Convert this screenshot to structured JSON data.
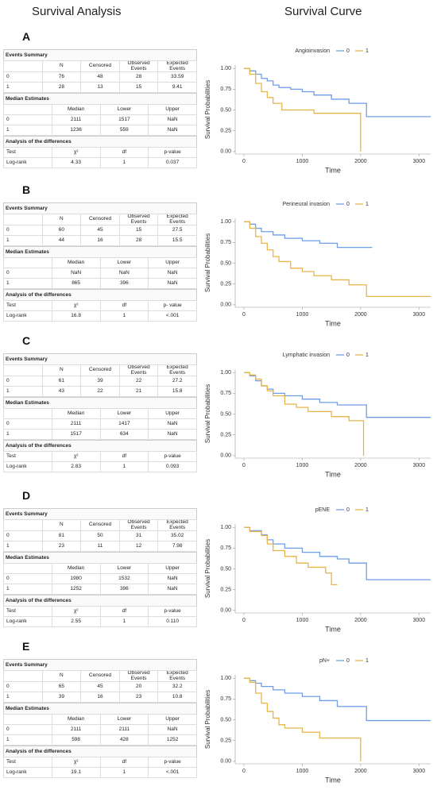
{
  "headers": {
    "left": "Survival Analysis",
    "right": "Survival Curve"
  },
  "panels": [
    {
      "label": "A",
      "tables": {
        "events": {
          "title": "Events Summary",
          "columns": [
            "N",
            "Censored",
            "Observed Events",
            "Expected Events"
          ],
          "rows": [
            [
              "0",
              "76",
              "48",
              "28",
              "33.59"
            ],
            [
              "1",
              "28",
              "13",
              "15",
              "9.41"
            ]
          ]
        },
        "medians": {
          "title": "Median Estimates",
          "columns": [
            "Median",
            "Lower",
            "Upper"
          ],
          "rows": [
            [
              "0",
              "2111",
              "1517",
              "NaN"
            ],
            [
              "1",
              "1236",
              "559",
              "NaN"
            ]
          ]
        },
        "tests": {
          "title": "Analysis of the differences",
          "columns": [
            "Test",
            "χ²",
            "df",
            "p-value"
          ],
          "rows": [
            [
              "Log-rank",
              "4.33",
              "1",
              "0.037"
            ]
          ]
        }
      }
    },
    {
      "label": "B",
      "tables": {
        "events": {
          "title": "Events Summary",
          "columns": [
            "N",
            "Censored",
            "Observed Events",
            "Expected Events"
          ],
          "rows": [
            [
              "0",
              "60",
              "45",
              "15",
              "27.5"
            ],
            [
              "1",
              "44",
              "16",
              "28",
              "15.5"
            ]
          ]
        },
        "medians": {
          "title": "Median Estimates",
          "columns": [
            "Median",
            "Lower",
            "Upper"
          ],
          "rows": [
            [
              "0",
              "NaN",
              "NaN",
              "NaN"
            ],
            [
              "1",
              "865",
              "396",
              "NaN"
            ]
          ]
        },
        "tests": {
          "title": "Analysis of the differences",
          "columns": [
            "Test",
            "χ²",
            "df",
            "p- value"
          ],
          "rows": [
            [
              "Log-rank",
              "16.8",
              "1",
              "<.001"
            ]
          ]
        }
      }
    },
    {
      "label": "C",
      "tables": {
        "events": {
          "title": "Events Summary",
          "columns": [
            "N",
            "Censored",
            "Observed Events",
            "Expected Events"
          ],
          "rows": [
            [
              "0",
              "61",
              "39",
              "22",
              "27.2"
            ],
            [
              "1",
              "43",
              "22",
              "21",
              "15.8"
            ]
          ]
        },
        "medians": {
          "title": "Median Estimates",
          "columns": [
            "Median",
            "Lower",
            "Upper"
          ],
          "rows": [
            [
              "0",
              "2111",
              "1417",
              "NaN"
            ],
            [
              "1",
              "1517",
              "634",
              "NaN"
            ]
          ]
        },
        "tests": {
          "title": "Analysis of the differences",
          "columns": [
            "Test",
            "χ²",
            "df",
            "p-value"
          ],
          "rows": [
            [
              "Log-rank",
              "2.83",
              "1",
              "0.093"
            ]
          ]
        }
      }
    },
    {
      "label": "D",
      "tables": {
        "events": {
          "title": "Events Summary",
          "columns": [
            "N",
            "Censored",
            "Observed Events",
            "Expected Events"
          ],
          "rows": [
            [
              "0",
              "81",
              "50",
              "31",
              "35.02"
            ],
            [
              "1",
              "23",
              "11",
              "12",
              "7.98"
            ]
          ]
        },
        "medians": {
          "title": "Median Estimates",
          "columns": [
            "Median",
            "Lower",
            "Upper"
          ],
          "rows": [
            [
              "0",
              "1980",
              "1532",
              "NaN"
            ],
            [
              "1",
              "1252",
              "396",
              "NaN"
            ]
          ]
        },
        "tests": {
          "title": "Analysis of the differences",
          "columns": [
            "Test",
            "χ²",
            "df",
            "p-value"
          ],
          "rows": [
            [
              "Log-rank",
              "2.55",
              "1",
              "0.110"
            ]
          ]
        }
      }
    },
    {
      "label": "E",
      "tables": {
        "events": {
          "title": "Events Summary",
          "columns": [
            "N",
            "Censored",
            "Observed Events",
            "Expected Events"
          ],
          "rows": [
            [
              "0",
              "65",
              "45",
              "20",
              "32.2"
            ],
            [
              "1",
              "39",
              "16",
              "23",
              "10.8"
            ]
          ]
        },
        "medians": {
          "title": "Median Estimates",
          "columns": [
            "Median",
            "Lower",
            "Upper"
          ],
          "rows": [
            [
              "0",
              "2111",
              "2111",
              "NaN"
            ],
            [
              "1",
              "598",
              "428",
              "1252"
            ]
          ]
        },
        "tests": {
          "title": "Analysis of the differences",
          "columns": [
            "Test",
            "χ²",
            "df",
            "p-value"
          ],
          "rows": [
            [
              "Log-rank",
              "19.1",
              "1",
              "<.001"
            ]
          ]
        }
      }
    }
  ],
  "chart_data": [
    {
      "type": "step",
      "title": "Angioinvasion",
      "xlabel": "Time",
      "ylabel": "Survival Probabilities",
      "xlim": [
        -150,
        3200
      ],
      "xticks": [
        0,
        1000,
        2000,
        3000
      ],
      "ylim": [
        -0.03,
        1.04
      ],
      "yticks": [
        {
          "value": 0,
          "label": "0.00"
        },
        {
          "value": 0.25,
          "label": "0.25"
        },
        {
          "value": 0.5,
          "label": "0.50"
        },
        {
          "value": 0.75,
          "label": "0.75"
        },
        {
          "value": 1,
          "label": "1.00"
        }
      ],
      "series": [
        {
          "name": "0",
          "color": "#6f9ee8",
          "x": [
            0,
            100,
            200,
            300,
            400,
            500,
            600,
            800,
            1000,
            1200,
            1500,
            1800,
            2100,
            3200
          ],
          "values": [
            1,
            0.97,
            0.93,
            0.88,
            0.85,
            0.8,
            0.77,
            0.75,
            0.72,
            0.68,
            0.63,
            0.58,
            0.42,
            0.42
          ]
        },
        {
          "name": "1",
          "color": "#e8b54a",
          "x": [
            0,
            100,
            200,
            300,
            400,
            500,
            650,
            1200,
            2000
          ],
          "values": [
            1,
            0.93,
            0.82,
            0.72,
            0.65,
            0.58,
            0.5,
            0.46,
            0
          ]
        }
      ]
    },
    {
      "type": "step",
      "title": "Perineural invasion",
      "xlabel": "Time",
      "ylabel": "Survival Probabilities",
      "xlim": [
        -150,
        3200
      ],
      "xticks": [
        0,
        1000,
        2000,
        3000
      ],
      "ylim": [
        -0.03,
        1.04
      ],
      "yticks": [
        {
          "value": 0,
          "label": "0.00"
        },
        {
          "value": 0.25,
          "label": "0.25"
        },
        {
          "value": 0.5,
          "label": "0.50"
        },
        {
          "value": 0.75,
          "label": "0.75"
        },
        {
          "value": 1,
          "label": "1.00"
        }
      ],
      "series": [
        {
          "name": "0",
          "color": "#6f9ee8",
          "x": [
            0,
            100,
            200,
            300,
            500,
            700,
            1000,
            1300,
            1600,
            2200
          ],
          "values": [
            1,
            0.97,
            0.92,
            0.88,
            0.84,
            0.8,
            0.77,
            0.74,
            0.69,
            0.69
          ]
        },
        {
          "name": "1",
          "color": "#e8b54a",
          "x": [
            0,
            100,
            200,
            300,
            400,
            500,
            600,
            800,
            1000,
            1200,
            1500,
            1800,
            2100,
            3200
          ],
          "values": [
            1,
            0.92,
            0.82,
            0.74,
            0.66,
            0.58,
            0.52,
            0.44,
            0.4,
            0.35,
            0.3,
            0.24,
            0.1,
            0.1
          ]
        }
      ]
    },
    {
      "type": "step",
      "title": "Lymphatic invasion",
      "xlabel": "Time",
      "ylabel": "Survival Probabilities",
      "xlim": [
        -150,
        3200
      ],
      "xticks": [
        0,
        1000,
        2000,
        3000
      ],
      "ylim": [
        -0.03,
        1.04
      ],
      "yticks": [
        {
          "value": 0,
          "label": "0.00"
        },
        {
          "value": 0.25,
          "label": "0.25"
        },
        {
          "value": 0.5,
          "label": "0.50"
        },
        {
          "value": 0.75,
          "label": "0.75"
        },
        {
          "value": 1,
          "label": "1.00"
        }
      ],
      "series": [
        {
          "name": "0",
          "color": "#6f9ee8",
          "x": [
            0,
            100,
            200,
            300,
            400,
            500,
            700,
            1000,
            1300,
            1600,
            2100,
            3200
          ],
          "values": [
            1,
            0.96,
            0.9,
            0.84,
            0.8,
            0.75,
            0.72,
            0.68,
            0.64,
            0.61,
            0.46,
            0.46
          ]
        },
        {
          "name": "1",
          "color": "#e8b54a",
          "x": [
            0,
            100,
            200,
            300,
            400,
            500,
            700,
            900,
            1100,
            1500,
            1800,
            2050
          ],
          "values": [
            1,
            0.97,
            0.92,
            0.84,
            0.78,
            0.72,
            0.62,
            0.58,
            0.53,
            0.47,
            0.42,
            0
          ]
        }
      ]
    },
    {
      "type": "step",
      "title": "pENE",
      "xlabel": "Time",
      "ylabel": "Survival Probabilities",
      "xlim": [
        -150,
        3200
      ],
      "xticks": [
        0,
        1000,
        2000,
        3000
      ],
      "ylim": [
        -0.03,
        1.04
      ],
      "yticks": [
        {
          "value": 0,
          "label": "0.00"
        },
        {
          "value": 0.25,
          "label": "0.25"
        },
        {
          "value": 0.5,
          "label": "0.50"
        },
        {
          "value": 0.75,
          "label": "0.75"
        },
        {
          "value": 1,
          "label": "1.00"
        }
      ],
      "series": [
        {
          "name": "0",
          "color": "#6f9ee8",
          "x": [
            0,
            100,
            300,
            400,
            500,
            700,
            1000,
            1300,
            1600,
            1800,
            2100,
            3200
          ],
          "values": [
            1,
            0.96,
            0.91,
            0.85,
            0.8,
            0.75,
            0.7,
            0.65,
            0.62,
            0.57,
            0.37,
            0.37
          ]
        },
        {
          "name": "1",
          "color": "#e8b54a",
          "x": [
            0,
            100,
            300,
            400,
            500,
            700,
            900,
            1100,
            1400,
            1500,
            1600
          ],
          "values": [
            1,
            0.95,
            0.9,
            0.8,
            0.72,
            0.65,
            0.57,
            0.52,
            0.45,
            0.31,
            0.31
          ]
        }
      ]
    },
    {
      "type": "step",
      "title": "pN+",
      "xlabel": "Time",
      "ylabel": "Survival Probabilities",
      "xlim": [
        -150,
        3200
      ],
      "xticks": [
        0,
        1000,
        2000,
        3000
      ],
      "ylim": [
        -0.03,
        1.04
      ],
      "yticks": [
        {
          "value": 0,
          "label": "0.00"
        },
        {
          "value": 0.25,
          "label": "0.25"
        },
        {
          "value": 0.5,
          "label": "0.50"
        },
        {
          "value": 0.75,
          "label": "0.75"
        },
        {
          "value": 1,
          "label": "1.00"
        }
      ],
      "series": [
        {
          "name": "0",
          "color": "#6f9ee8",
          "x": [
            0,
            100,
            200,
            300,
            500,
            700,
            1000,
            1300,
            1600,
            2100,
            3200
          ],
          "values": [
            1,
            0.97,
            0.94,
            0.9,
            0.86,
            0.82,
            0.78,
            0.73,
            0.66,
            0.49,
            0.49
          ]
        },
        {
          "name": "1",
          "color": "#e8b54a",
          "x": [
            0,
            100,
            200,
            300,
            400,
            500,
            600,
            700,
            1000,
            1300,
            2000
          ],
          "values": [
            1,
            0.95,
            0.82,
            0.7,
            0.6,
            0.52,
            0.44,
            0.4,
            0.35,
            0.28,
            0
          ]
        }
      ]
    }
  ]
}
